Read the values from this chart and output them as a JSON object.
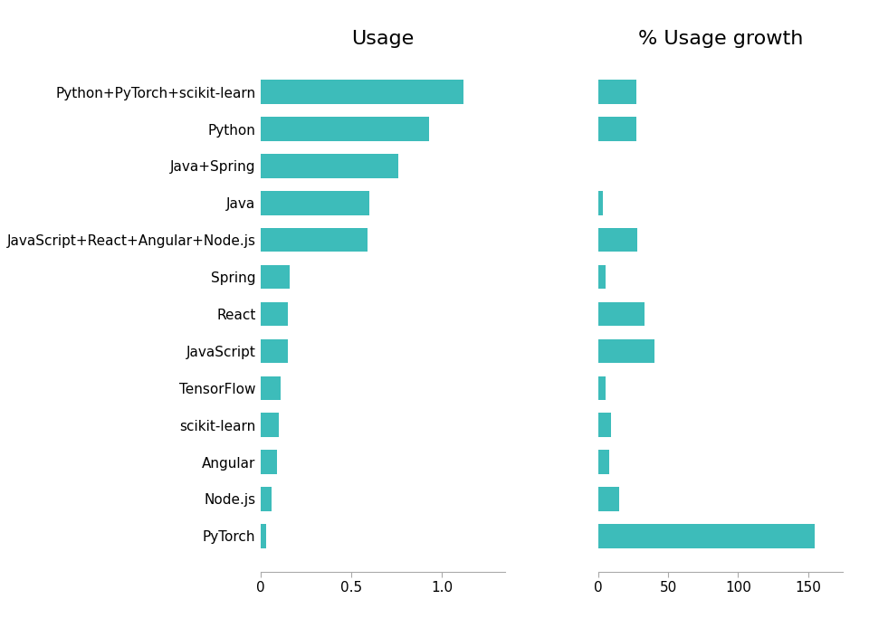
{
  "categories": [
    "Python+PyTorch+scikit-learn",
    "Python",
    "Java+Spring",
    "Java",
    "JavaScript+React+Angular+Node.js",
    "Spring",
    "React",
    "JavaScript",
    "TensorFlow",
    "scikit-learn",
    "Angular",
    "Node.js",
    "PyTorch"
  ],
  "usage": [
    1.12,
    0.93,
    0.76,
    0.6,
    0.59,
    0.16,
    0.15,
    0.15,
    0.11,
    0.1,
    0.09,
    0.06,
    0.03
  ],
  "growth": [
    27,
    27,
    0,
    3,
    28,
    5,
    33,
    40,
    5,
    9,
    8,
    15,
    155
  ],
  "bar_color": "#3dbcba",
  "title_usage": "Usage",
  "title_growth": "% Usage growth",
  "title_fontsize": 16,
  "label_fontsize": 11,
  "tick_fontsize": 11,
  "background_color": "#ffffff"
}
